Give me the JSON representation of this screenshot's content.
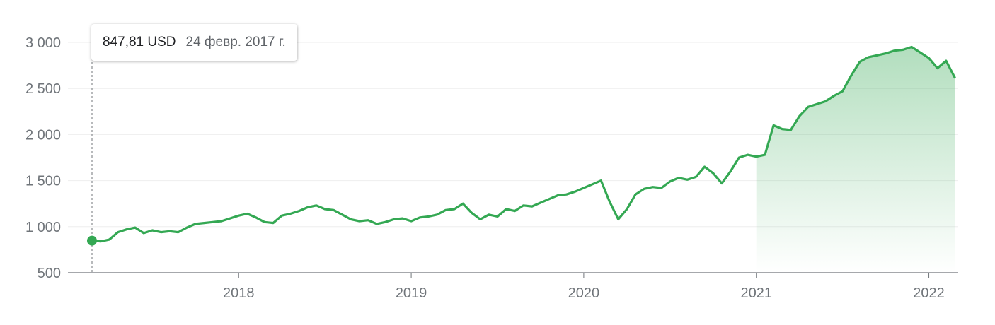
{
  "tooltip": {
    "value": "847,81 USD",
    "date": "24 февр. 2017 г."
  },
  "colors": {
    "line": "#34a853",
    "fill": "#34a853",
    "grid": "#eeeeee",
    "axis": "#70757a",
    "hover_line": "#70757a"
  },
  "chart_data": {
    "type": "area",
    "title": "",
    "xlabel": "",
    "ylabel": "",
    "ylim": [
      500,
      3000
    ],
    "yticks": [
      {
        "v": 500,
        "label": "500"
      },
      {
        "v": 1000,
        "label": "1 000"
      },
      {
        "v": 1500,
        "label": "1 500"
      },
      {
        "v": 2000,
        "label": "2 000"
      },
      {
        "v": 2500,
        "label": "2 500"
      },
      {
        "v": 3000,
        "label": "3 000"
      }
    ],
    "xlim": [
      2017.15,
      2022.17
    ],
    "xticks": [
      {
        "v": 2018.0,
        "label": "2018"
      },
      {
        "v": 2019.0,
        "label": "2019"
      },
      {
        "v": 2020.0,
        "label": "2020"
      },
      {
        "v": 2021.0,
        "label": "2021"
      },
      {
        "v": 2022.0,
        "label": "2022"
      }
    ],
    "fill_from": 2021.0,
    "highlight": {
      "x": 2017.15,
      "y": 847.81
    },
    "x": [
      2017.15,
      2017.2,
      2017.25,
      2017.3,
      2017.35,
      2017.4,
      2017.45,
      2017.5,
      2017.55,
      2017.6,
      2017.65,
      2017.7,
      2017.75,
      2017.8,
      2017.85,
      2017.9,
      2017.95,
      2018.0,
      2018.05,
      2018.1,
      2018.15,
      2018.2,
      2018.25,
      2018.3,
      2018.35,
      2018.4,
      2018.45,
      2018.5,
      2018.55,
      2018.6,
      2018.65,
      2018.7,
      2018.75,
      2018.8,
      2018.85,
      2018.9,
      2018.95,
      2019.0,
      2019.05,
      2019.1,
      2019.15,
      2019.2,
      2019.25,
      2019.3,
      2019.35,
      2019.4,
      2019.45,
      2019.5,
      2019.55,
      2019.6,
      2019.65,
      2019.7,
      2019.75,
      2019.8,
      2019.85,
      2019.9,
      2019.95,
      2020.0,
      2020.05,
      2020.1,
      2020.15,
      2020.2,
      2020.25,
      2020.3,
      2020.35,
      2020.4,
      2020.45,
      2020.5,
      2020.55,
      2020.6,
      2020.65,
      2020.7,
      2020.75,
      2020.8,
      2020.85,
      2020.9,
      2020.95,
      2021.0,
      2021.05,
      2021.1,
      2021.15,
      2021.2,
      2021.25,
      2021.3,
      2021.35,
      2021.4,
      2021.45,
      2021.5,
      2021.55,
      2021.6,
      2021.65,
      2021.7,
      2021.75,
      2021.8,
      2021.85,
      2021.9,
      2021.95,
      2022.0,
      2022.05,
      2022.1,
      2022.15
    ],
    "y": [
      848,
      840,
      860,
      940,
      970,
      990,
      930,
      960,
      940,
      950,
      940,
      990,
      1030,
      1040,
      1050,
      1060,
      1090,
      1120,
      1140,
      1100,
      1050,
      1040,
      1120,
      1140,
      1170,
      1210,
      1230,
      1190,
      1180,
      1130,
      1080,
      1060,
      1070,
      1030,
      1050,
      1080,
      1090,
      1060,
      1100,
      1110,
      1130,
      1180,
      1190,
      1250,
      1150,
      1080,
      1130,
      1110,
      1190,
      1170,
      1230,
      1220,
      1260,
      1300,
      1340,
      1350,
      1380,
      1420,
      1460,
      1500,
      1270,
      1080,
      1190,
      1350,
      1410,
      1430,
      1420,
      1490,
      1530,
      1510,
      1540,
      1650,
      1580,
      1470,
      1600,
      1750,
      1780,
      1760,
      1780,
      2100,
      2060,
      2050,
      2200,
      2300,
      2330,
      2360,
      2420,
      2470,
      2640,
      2790,
      2840,
      2860,
      2880,
      2910,
      2920,
      2950,
      2890,
      2830,
      2720,
      2800,
      2620
    ]
  }
}
